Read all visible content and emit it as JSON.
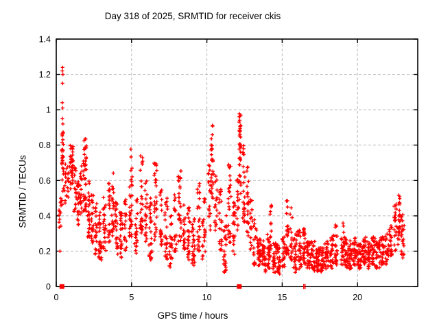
{
  "chart_data": {
    "type": "scatter",
    "title": "Day 318 of 2025, SRMTID for receiver ckis",
    "xlabel": "GPS time / hours",
    "ylabel": "SRMTID / TECUs",
    "xlim": [
      0,
      24
    ],
    "ylim": [
      0,
      1.4
    ],
    "xticks": [
      0,
      5,
      10,
      15,
      20
    ],
    "yticks": [
      0,
      0.2,
      0.4,
      0.6,
      0.8,
      1,
      1.2,
      1.4
    ],
    "grid": true,
    "legend": "none",
    "marker": "plus",
    "marker_color": "#ff0000",
    "grid_color": "#b9b9b9",
    "border_color": "#000000",
    "seed": 318,
    "clusters": [
      [
        0.25,
        0.15,
        12,
        0.33,
        0.5,
        1.0
      ],
      [
        0.42,
        0.12,
        30,
        0.45,
        0.88,
        0.65
      ],
      [
        0.62,
        0.15,
        12,
        0.42,
        0.72,
        1.1
      ],
      [
        0.82,
        0.15,
        10,
        0.5,
        0.68,
        1.0
      ],
      [
        1.02,
        0.2,
        34,
        0.55,
        0.8,
        0.9
      ],
      [
        1.25,
        0.15,
        18,
        0.42,
        0.68,
        1.1
      ],
      [
        1.45,
        0.15,
        22,
        0.34,
        0.62,
        1.1
      ],
      [
        1.65,
        0.15,
        20,
        0.4,
        0.7,
        1.2
      ],
      [
        1.9,
        0.2,
        40,
        0.42,
        0.86,
        1.4
      ],
      [
        2.15,
        0.15,
        25,
        0.28,
        0.6,
        1.2
      ],
      [
        2.4,
        0.15,
        22,
        0.22,
        0.52,
        1.2
      ],
      [
        2.65,
        0.15,
        20,
        0.18,
        0.48,
        1.2
      ],
      [
        2.9,
        0.2,
        30,
        0.15,
        0.42,
        1.3
      ],
      [
        3.2,
        0.2,
        25,
        0.2,
        0.55,
        1.3
      ],
      [
        3.5,
        0.15,
        20,
        0.25,
        0.6,
        1.2
      ],
      [
        3.75,
        0.15,
        22,
        0.28,
        0.66,
        1.4
      ],
      [
        4.0,
        0.2,
        25,
        0.18,
        0.5,
        1.2
      ],
      [
        4.3,
        0.2,
        25,
        0.14,
        0.42,
        1.2
      ],
      [
        4.6,
        0.15,
        18,
        0.2,
        0.5,
        1.2
      ],
      [
        4.95,
        0.2,
        34,
        0.28,
        0.79,
        1.6
      ],
      [
        5.3,
        0.2,
        22,
        0.18,
        0.5,
        1.2
      ],
      [
        5.65,
        0.2,
        30,
        0.3,
        0.76,
        1.4
      ],
      [
        5.95,
        0.15,
        20,
        0.25,
        0.6,
        1.2
      ],
      [
        6.25,
        0.2,
        25,
        0.15,
        0.5,
        1.2
      ],
      [
        6.6,
        0.2,
        30,
        0.25,
        0.72,
        1.5
      ],
      [
        6.95,
        0.15,
        20,
        0.2,
        0.55,
        1.2
      ],
      [
        7.3,
        0.2,
        25,
        0.15,
        0.5,
        1.2
      ],
      [
        7.6,
        0.2,
        22,
        0.1,
        0.42,
        1.3
      ],
      [
        7.9,
        0.15,
        18,
        0.2,
        0.52,
        1.2
      ],
      [
        8.2,
        0.2,
        30,
        0.25,
        0.68,
        1.5
      ],
      [
        8.5,
        0.15,
        20,
        0.2,
        0.55,
        1.2
      ],
      [
        8.8,
        0.2,
        25,
        0.15,
        0.45,
        1.2
      ],
      [
        9.1,
        0.2,
        28,
        0.12,
        0.4,
        1.3
      ],
      [
        9.45,
        0.2,
        25,
        0.2,
        0.62,
        1.5
      ],
      [
        9.8,
        0.2,
        22,
        0.15,
        0.5,
        1.2
      ],
      [
        10.15,
        0.15,
        18,
        0.3,
        0.7,
        1.3
      ],
      [
        10.35,
        0.15,
        30,
        0.45,
        0.94,
        0.9
      ],
      [
        10.6,
        0.15,
        18,
        0.3,
        0.65,
        1.2
      ],
      [
        10.9,
        0.2,
        22,
        0.18,
        0.55,
        1.2
      ],
      [
        11.2,
        0.2,
        25,
        0.08,
        0.45,
        1.3
      ],
      [
        11.5,
        0.2,
        25,
        0.25,
        0.7,
        1.4
      ],
      [
        11.8,
        0.2,
        22,
        0.15,
        0.55,
        1.3
      ],
      [
        12.05,
        0.1,
        15,
        0.3,
        0.65,
        1.1
      ],
      [
        12.2,
        0.12,
        40,
        0.45,
        0.98,
        0.75
      ],
      [
        12.45,
        0.15,
        25,
        0.35,
        0.8,
        1.1
      ],
      [
        12.7,
        0.15,
        22,
        0.28,
        0.68,
        1.2
      ],
      [
        12.95,
        0.15,
        18,
        0.18,
        0.5,
        1.2
      ],
      [
        13.2,
        0.2,
        20,
        0.12,
        0.38,
        1.2
      ],
      [
        13.5,
        0.25,
        30,
        0.1,
        0.28,
        1.1
      ],
      [
        13.8,
        0.25,
        30,
        0.08,
        0.26,
        1.1
      ],
      [
        14.1,
        0.2,
        25,
        0.1,
        0.3,
        1.1
      ],
      [
        14.25,
        0.1,
        12,
        0.2,
        0.47,
        1.3
      ],
      [
        14.5,
        0.25,
        30,
        0.08,
        0.26,
        1.1
      ],
      [
        14.8,
        0.25,
        28,
        0.07,
        0.24,
        1.1
      ],
      [
        15.1,
        0.2,
        22,
        0.1,
        0.28,
        1.1
      ],
      [
        15.35,
        0.15,
        25,
        0.18,
        0.58,
        1.7
      ],
      [
        15.6,
        0.15,
        18,
        0.15,
        0.45,
        1.4
      ],
      [
        15.85,
        0.2,
        25,
        0.08,
        0.3,
        1.1
      ],
      [
        16.15,
        0.25,
        30,
        0.1,
        0.32,
        1.2
      ],
      [
        16.45,
        0.2,
        28,
        0.12,
        0.33,
        1.2
      ],
      [
        16.75,
        0.25,
        28,
        0.1,
        0.28,
        1.1
      ],
      [
        17.05,
        0.25,
        28,
        0.08,
        0.26,
        1.1
      ],
      [
        17.35,
        0.25,
        28,
        0.08,
        0.24,
        1.1
      ],
      [
        17.65,
        0.25,
        26,
        0.08,
        0.22,
        1.1
      ],
      [
        17.95,
        0.25,
        26,
        0.1,
        0.26,
        1.1
      ],
      [
        18.3,
        0.25,
        28,
        0.1,
        0.3,
        1.2
      ],
      [
        18.6,
        0.2,
        24,
        0.12,
        0.35,
        1.3
      ],
      [
        19.0,
        0.2,
        20,
        0.12,
        0.36,
        1.3
      ],
      [
        19.25,
        0.25,
        28,
        0.1,
        0.28,
        1.1
      ],
      [
        19.55,
        0.25,
        28,
        0.1,
        0.26,
        1.1
      ],
      [
        19.85,
        0.25,
        28,
        0.12,
        0.28,
        1.1
      ],
      [
        20.15,
        0.25,
        28,
        0.1,
        0.26,
        1.1
      ],
      [
        20.45,
        0.25,
        28,
        0.12,
        0.28,
        1.1
      ],
      [
        20.75,
        0.25,
        28,
        0.1,
        0.26,
        1.1
      ],
      [
        21.05,
        0.25,
        28,
        0.12,
        0.28,
        1.1
      ],
      [
        21.35,
        0.25,
        26,
        0.1,
        0.26,
        1.1
      ],
      [
        21.65,
        0.25,
        26,
        0.12,
        0.28,
        1.1
      ],
      [
        21.95,
        0.25,
        24,
        0.12,
        0.3,
        1.2
      ],
      [
        22.2,
        0.2,
        22,
        0.15,
        0.35,
        1.2
      ],
      [
        22.5,
        0.15,
        22,
        0.2,
        0.48,
        0.9
      ],
      [
        22.75,
        0.15,
        24,
        0.22,
        0.52,
        0.9
      ],
      [
        22.95,
        0.12,
        16,
        0.18,
        0.45,
        1.0
      ],
      [
        23.05,
        0.1,
        8,
        0.15,
        0.35,
        1.1
      ]
    ],
    "outliers": [
      [
        0.42,
        1.24
      ],
      [
        0.4,
        1.22
      ],
      [
        0.44,
        1.2
      ],
      [
        0.42,
        1.15
      ],
      [
        0.4,
        1.04
      ],
      [
        0.43,
        1.01
      ],
      [
        0.41,
        0.95
      ],
      [
        0.44,
        0.92
      ],
      [
        0.25,
        0.2
      ]
    ],
    "squares": [
      [
        0.38,
        0
      ],
      [
        12.15,
        0
      ]
    ],
    "zero_marks": [
      [
        16.43,
        0
      ],
      [
        16.52,
        0
      ]
    ]
  }
}
